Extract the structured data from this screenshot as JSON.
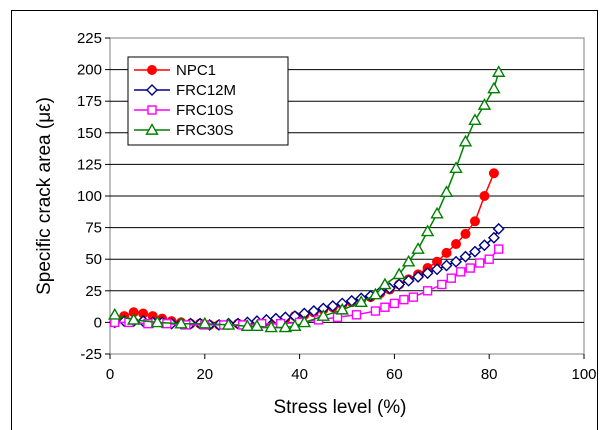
{
  "chart_data": {
    "type": "line",
    "title": "",
    "xlabel": "Stress level (%)",
    "ylabel": "Specific crack area (με)",
    "xlim": [
      0,
      100
    ],
    "ylim": [
      -25,
      225
    ],
    "x_ticks": [
      0,
      20,
      40,
      60,
      80,
      100
    ],
    "y_ticks": [
      -25,
      0,
      25,
      50,
      75,
      100,
      125,
      150,
      175,
      200,
      225
    ],
    "grid": "horizontal",
    "legend_position": "top-left",
    "series": [
      {
        "name": "NPC1",
        "color": "#ff0000",
        "marker": "circle",
        "x": [
          1,
          3,
          5,
          7,
          9,
          11,
          13,
          15,
          17,
          19,
          21,
          23,
          25,
          27,
          29,
          31,
          33,
          35,
          37,
          39,
          41,
          43,
          45,
          47,
          49,
          51,
          53,
          55,
          57,
          59,
          61,
          63,
          65,
          67,
          69,
          71,
          73,
          75,
          77,
          79,
          81
        ],
        "y": [
          2,
          5,
          8,
          7,
          5,
          3,
          1,
          0,
          -1,
          -1,
          -2,
          -2,
          -2,
          -1,
          -1,
          0,
          1,
          2,
          3,
          5,
          6,
          8,
          10,
          12,
          14,
          16,
          18,
          20,
          23,
          26,
          30,
          34,
          38,
          43,
          48,
          55,
          62,
          70,
          80,
          100,
          118
        ]
      },
      {
        "name": "FRC12M",
        "color": "#000080",
        "marker": "diamond",
        "x": [
          1,
          3,
          5,
          7,
          9,
          11,
          13,
          15,
          17,
          19,
          21,
          23,
          25,
          27,
          29,
          31,
          33,
          35,
          37,
          39,
          41,
          43,
          45,
          47,
          49,
          51,
          53,
          55,
          57,
          59,
          61,
          63,
          65,
          67,
          69,
          71,
          73,
          75,
          77,
          79,
          81,
          82
        ],
        "y": [
          0,
          1,
          1,
          1,
          0,
          0,
          -1,
          -1,
          -1,
          -1,
          -2,
          -2,
          -1,
          -1,
          0,
          1,
          2,
          3,
          4,
          5,
          7,
          9,
          11,
          13,
          15,
          17,
          19,
          21,
          24,
          27,
          30,
          33,
          36,
          39,
          42,
          45,
          48,
          52,
          56,
          61,
          67,
          74
        ]
      },
      {
        "name": "FRC10S",
        "color": "#ff00ff",
        "marker": "square",
        "x": [
          1,
          4,
          8,
          12,
          16,
          20,
          24,
          28,
          32,
          36,
          40,
          44,
          48,
          52,
          56,
          58,
          60,
          62,
          64,
          67,
          70,
          72,
          74,
          76,
          78,
          80,
          82
        ],
        "y": [
          0,
          0,
          -1,
          -1,
          -2,
          -2,
          -2,
          -2,
          -1,
          -1,
          0,
          2,
          4,
          6,
          9,
          12,
          15,
          18,
          20,
          25,
          30,
          35,
          40,
          43,
          47,
          50,
          58
        ]
      },
      {
        "name": "FRC30S",
        "color": "#008000",
        "marker": "triangle",
        "x": [
          1,
          5,
          10,
          15,
          20,
          25,
          29,
          31,
          34,
          37,
          39,
          41,
          45,
          49,
          53,
          56,
          58,
          61,
          63,
          65,
          67,
          69,
          71,
          73,
          75,
          77,
          79,
          81,
          82
        ],
        "y": [
          6,
          2,
          0,
          -1,
          -1,
          -2,
          -3,
          -3,
          -4,
          -4,
          -3,
          0,
          5,
          10,
          16,
          22,
          30,
          38,
          48,
          58,
          72,
          86,
          103,
          122,
          143,
          160,
          172,
          185,
          198
        ]
      }
    ]
  }
}
